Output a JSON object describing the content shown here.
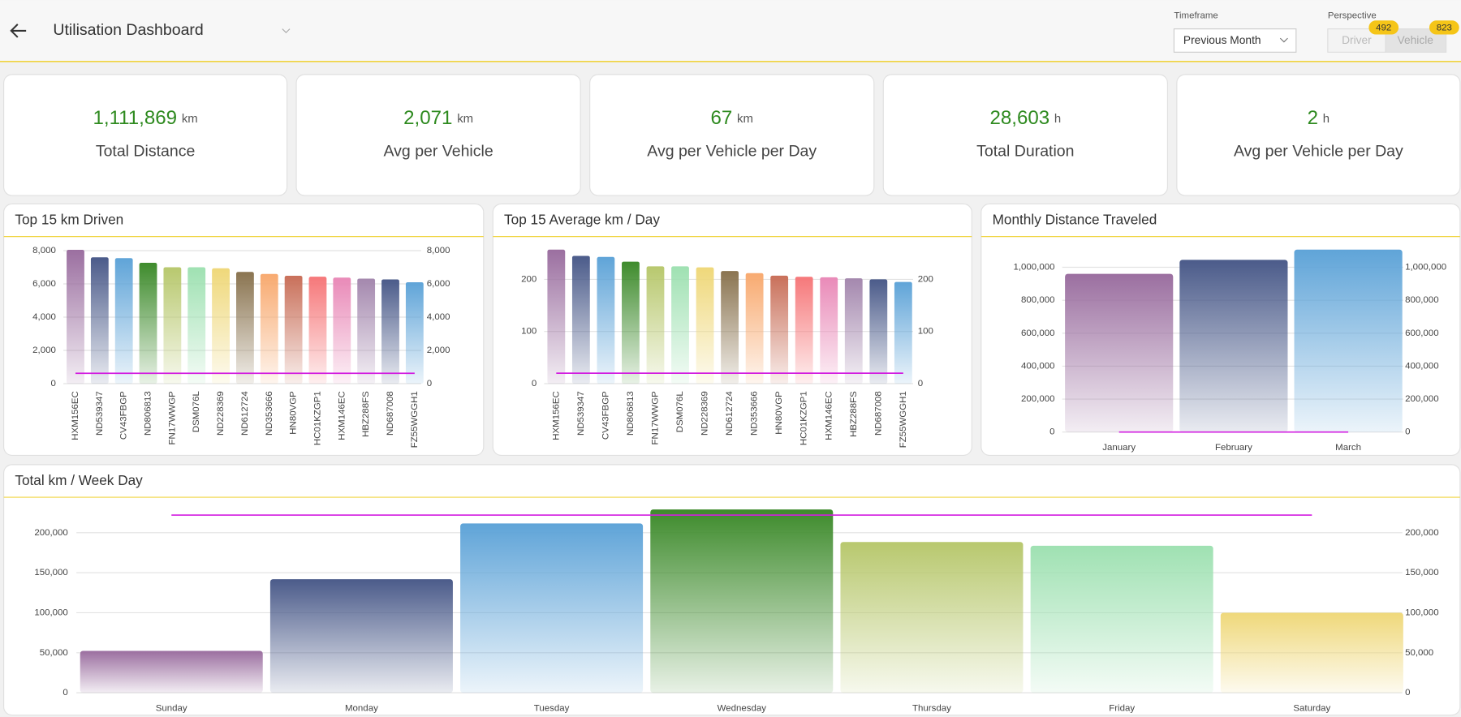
{
  "header": {
    "title": "Utilisation Dashboard",
    "timeframe_label": "Timeframe",
    "timeframe_value": "Previous Month",
    "perspective_label": "Perspective",
    "perspective_options": [
      {
        "label": "Driver",
        "count": 492
      },
      {
        "label": "Vehicle",
        "count": 823
      }
    ]
  },
  "kpis": [
    {
      "value": "1,111,869",
      "unit": "km",
      "label": "Total Distance"
    },
    {
      "value": "2,071",
      "unit": "km",
      "label": "Avg per Vehicle"
    },
    {
      "value": "67",
      "unit": "km",
      "label": "Avg per Vehicle per Day"
    },
    {
      "value": "28,603",
      "unit": "h",
      "label": "Total Duration"
    },
    {
      "value": "2",
      "unit": "h",
      "label": "Avg per Vehicle per Day"
    }
  ],
  "chart_data": [
    {
      "type": "bar",
      "title": "Top 15 km Driven",
      "categories": [
        "HXM156EC",
        "ND539347",
        "CV43FBGP",
        "ND806813",
        "FN17WWGP",
        "DSM076L",
        "ND228369",
        "ND612724",
        "ND353666",
        "HN80VGP",
        "HC01KZGP1",
        "HXM146EC",
        "HBZ288FS",
        "ND687008",
        "FZ55WGGH1"
      ],
      "values": [
        8050,
        7600,
        7550,
        7270,
        7000,
        7000,
        6940,
        6720,
        6600,
        6490,
        6430,
        6380,
        6320,
        6270,
        6100
      ],
      "colors": [
        "#9b6fa0",
        "#4b5b8a",
        "#5fa4d8",
        "#3e8b2c",
        "#b8c86e",
        "#9fe1b2",
        "#efd87a",
        "#8a7450",
        "#f8aa70",
        "#c9705a",
        "#f6787a",
        "#e98ab8",
        "#a488ae",
        "#4b5b8a",
        "#5fa4d8"
      ],
      "reference_line": 620,
      "ylim": [
        0,
        8400
      ],
      "yticks": [
        0,
        {
          "value": 2000,
          "label": "2,000"
        },
        {
          "value": 4000,
          "label": "4,000"
        },
        {
          "value": 6000,
          "label": "6,000"
        },
        {
          "value": 8000,
          "label": "8,000"
        }
      ],
      "y2lim": [
        0,
        8400
      ],
      "y2ticks": [
        0,
        {
          "value": 2000,
          "label": "2,000"
        },
        {
          "value": 4000,
          "label": "4,000"
        },
        {
          "value": 6000,
          "label": "6,000"
        },
        {
          "value": 8000,
          "label": "8,000"
        }
      ],
      "grid": true
    },
    {
      "type": "bar",
      "title": "Top 15 Average km / Day",
      "categories": [
        "HXM156EC",
        "ND539347",
        "CV43FBGP",
        "ND806813",
        "FN17WWGP",
        "DSM076L",
        "ND228369",
        "ND612724",
        "ND353666",
        "HN80VGP",
        "HC01KZGP1",
        "HXM146EC",
        "HBZ288FS",
        "ND687008",
        "FZ55WGGH1"
      ],
      "values": [
        257,
        245,
        243,
        234,
        225,
        225,
        223,
        216,
        212,
        207,
        205,
        204,
        202,
        200,
        195
      ],
      "colors": [
        "#9b6fa0",
        "#4b5b8a",
        "#5fa4d8",
        "#3e8b2c",
        "#b8c86e",
        "#9fe1b2",
        "#efd87a",
        "#8a7450",
        "#f8aa70",
        "#c9705a",
        "#f6787a",
        "#e98ab8",
        "#a488ae",
        "#4b5b8a",
        "#5fa4d8"
      ],
      "reference_line": 20,
      "ylim": [
        0,
        265
      ],
      "yticks": [
        0,
        100,
        200
      ],
      "y2lim": [
        0,
        265
      ],
      "y2ticks": [
        0,
        100,
        200
      ],
      "grid": true
    },
    {
      "type": "bar",
      "title": "Monthly Distance Traveled",
      "categories": [
        "January",
        "February",
        "March"
      ],
      "values": [
        960000,
        1045000,
        1107000
      ],
      "colors": [
        "#9b6fa0",
        "#4b5b8a",
        "#5fa4d8"
      ],
      "reference_line": 0,
      "ylim": [
        0,
        1130000
      ],
      "yticks": [
        0,
        {
          "value": 200000,
          "label": "200,000"
        },
        {
          "value": 400000,
          "label": "400,000"
        },
        {
          "value": 600000,
          "label": "600,000"
        },
        {
          "value": 800000,
          "label": "800,000"
        },
        {
          "value": 1000000,
          "label": "1,000,000"
        }
      ],
      "y2lim": [
        0,
        1130000
      ],
      "y2ticks": [
        0,
        {
          "value": 200000,
          "label": "200,000"
        },
        {
          "value": 400000,
          "label": "400,000"
        },
        {
          "value": 600000,
          "label": "600,000"
        },
        {
          "value": 800000,
          "label": "800,000"
        },
        {
          "value": 1000000,
          "label": "1,000,000"
        }
      ],
      "grid": true
    },
    {
      "type": "bar",
      "title": "Total km / Week Day",
      "categories": [
        "Sunday",
        "Monday",
        "Tuesday",
        "Wednesday",
        "Thursday",
        "Friday",
        "Saturday"
      ],
      "values": [
        52300,
        141900,
        211600,
        229000,
        188400,
        183700,
        100000
      ],
      "colors": [
        "#9b6fa0",
        "#4b5b8a",
        "#5fa4d8",
        "#3e8b2c",
        "#b8c86e",
        "#9fe1b2",
        "#efd87a"
      ],
      "reference_line": 222000,
      "ylim": [
        0,
        235000
      ],
      "yticks": [
        0,
        {
          "value": 50000,
          "label": "50,000"
        },
        {
          "value": 100000,
          "label": "100,000"
        },
        {
          "value": 150000,
          "label": "150,000"
        },
        {
          "value": 200000,
          "label": "200,000"
        }
      ],
      "y2lim": [
        0,
        235000
      ],
      "y2ticks": [
        0,
        {
          "value": 50000,
          "label": "50,000"
        },
        {
          "value": 100000,
          "label": "100,000"
        },
        {
          "value": 150000,
          "label": "150,000"
        },
        {
          "value": 200000,
          "label": "200,000"
        }
      ],
      "grid": true
    }
  ]
}
